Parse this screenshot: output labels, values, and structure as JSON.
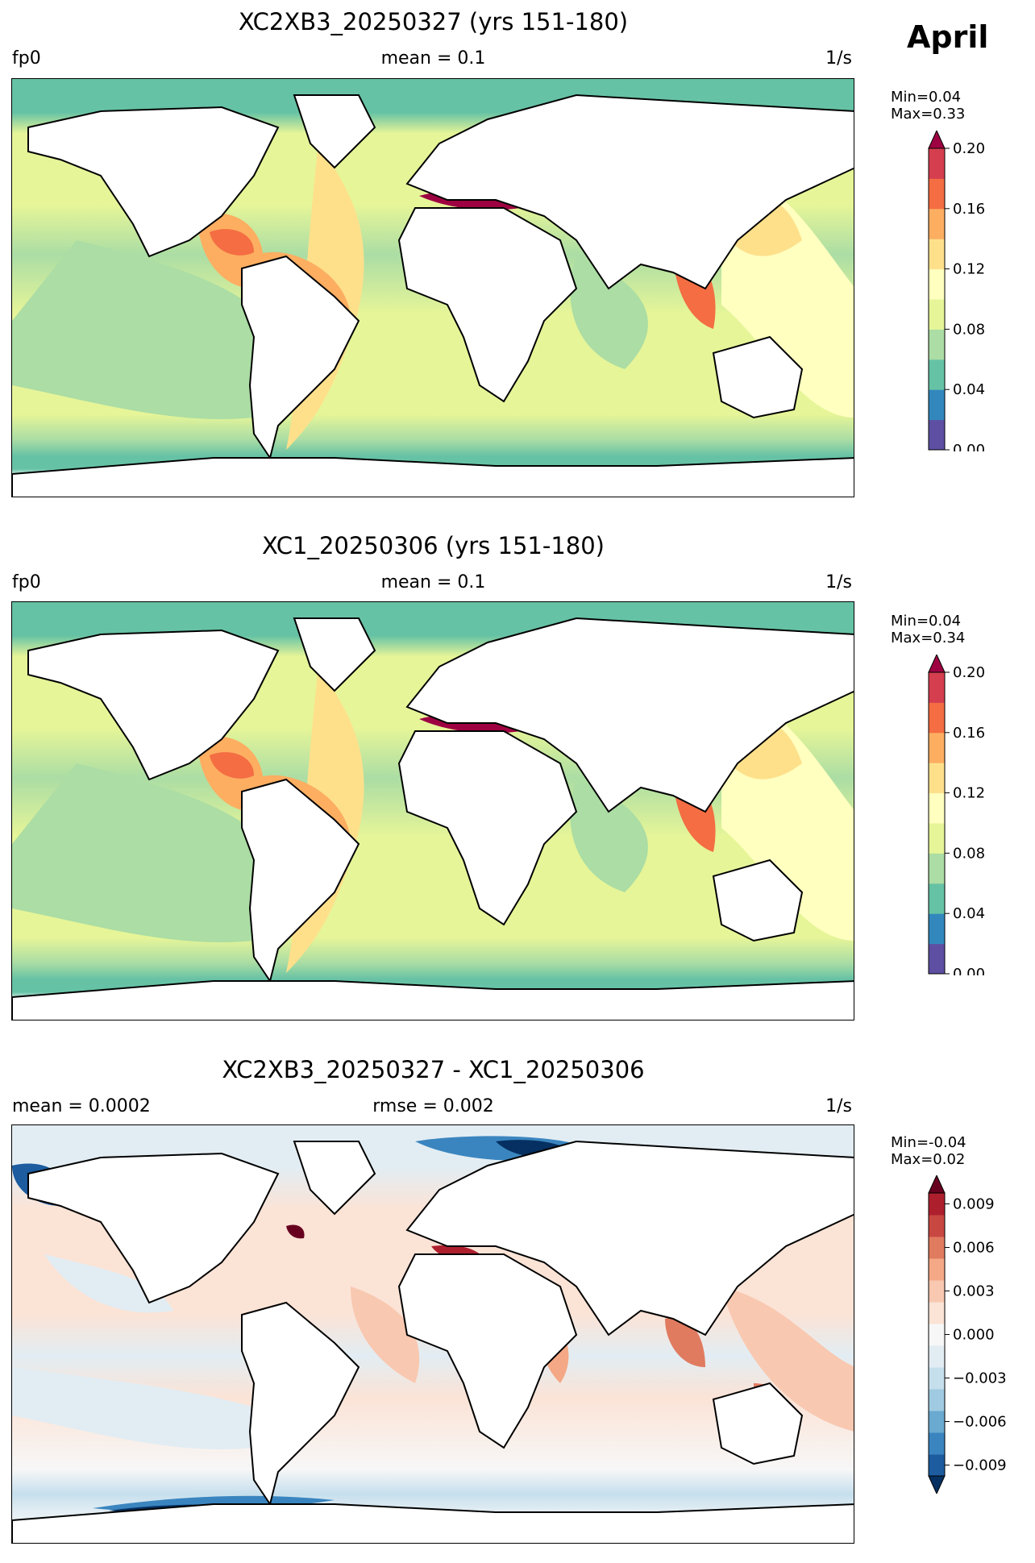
{
  "month_label": "April",
  "panels": [
    {
      "title": "XC2XB3_20250327 (yrs 151-180)",
      "left_label": "fp0",
      "center_label": "mean = 0.1",
      "right_label": "1/s",
      "colorbar": {
        "min_text": "Min=0.04",
        "max_text": "Max=0.33",
        "ticks": [
          "0.00",
          "0.04",
          "0.08",
          "0.12",
          "0.16",
          "0.20"
        ],
        "colors": [
          "#5e4fa2",
          "#3288bd",
          "#66c2a5",
          "#abdda4",
          "#e6f598",
          "#ffffbf",
          "#fee08b",
          "#fdae61",
          "#f46d43",
          "#d53e4f",
          "#9e0142"
        ],
        "extend": "max"
      }
    },
    {
      "title": "XC1_20250306 (yrs 151-180)",
      "left_label": "fp0",
      "center_label": "mean = 0.1",
      "right_label": "1/s",
      "colorbar": {
        "min_text": "Min=0.04",
        "max_text": "Max=0.34",
        "ticks": [
          "0.00",
          "0.04",
          "0.08",
          "0.12",
          "0.16",
          "0.20"
        ],
        "colors": [
          "#5e4fa2",
          "#3288bd",
          "#66c2a5",
          "#abdda4",
          "#e6f598",
          "#ffffbf",
          "#fee08b",
          "#fdae61",
          "#f46d43",
          "#d53e4f",
          "#9e0142"
        ],
        "extend": "max"
      }
    },
    {
      "title": "XC2XB3_20250327 - XC1_20250306",
      "left_label": "mean = 0.0002",
      "center_label": "rmse = 0.002",
      "right_label": "1/s",
      "colorbar": {
        "min_text": "Min=-0.04",
        "max_text": "Max=0.02",
        "ticks": [
          "−0.009",
          "−0.006",
          "−0.003",
          "0.000",
          "0.003",
          "0.006",
          "0.009"
        ],
        "colors": [
          "#053061",
          "#1c5c9f",
          "#3a85bf",
          "#6aa9d0",
          "#9fcae1",
          "#c6dfed",
          "#e2edf3",
          "#f7f7f7",
          "#fbe3d6",
          "#f9c8b0",
          "#f4a885",
          "#e07b60",
          "#c94741",
          "#ae1f2e",
          "#67001f"
        ],
        "extend": "both"
      }
    }
  ]
}
